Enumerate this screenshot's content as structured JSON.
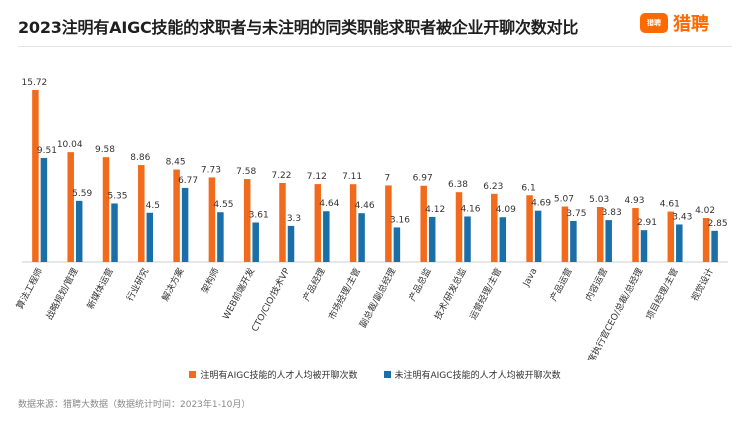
{
  "header": {
    "title": "2023注明有AIGC技能的求职者与未注明的同类职能求职者被企业开聊次数对比",
    "logo_badge": "猎聘",
    "logo_text": "猎聘"
  },
  "colors": {
    "orange": "#f26a1b",
    "blue": "#1a6fa9",
    "logo": "#ff6a00"
  },
  "footer": {
    "source": "数据来源：猎聘大数据（数据统计时间：2023年1-10月）"
  },
  "chart_data": {
    "type": "bar",
    "categories": [
      "算法工程师",
      "战略规划/管理",
      "新媒体运营",
      "行业研究",
      "解决方案",
      "架构师",
      "WEB前端开发",
      "CTO/CIO/技术VP",
      "产品经理",
      "市场经理/主管",
      "副总裁/副总经理",
      "产品总监",
      "技术/研发总监",
      "运营经理/主管",
      "Java",
      "产品运营",
      "内容运营",
      "首席执行官CEO/总裁/总经理",
      "项目经理/主管",
      "视觉设计"
    ],
    "series": [
      {
        "name": "注明有AIGC技能的人才人均被开聊次数",
        "color": "#f26a1b",
        "values": [
          15.72,
          10.04,
          9.58,
          8.86,
          8.45,
          7.73,
          7.58,
          7.22,
          7.12,
          7.11,
          7,
          6.97,
          6.38,
          6.23,
          6.1,
          5.07,
          5.03,
          4.93,
          4.61,
          4.02
        ]
      },
      {
        "name": "未注明有AIGC技能的人才人均被开聊次数",
        "color": "#1a6fa9",
        "values": [
          9.51,
          5.59,
          5.35,
          4.5,
          6.77,
          4.55,
          3.61,
          3.3,
          4.64,
          4.46,
          3.16,
          4.12,
          4.16,
          4.09,
          4.69,
          3.75,
          3.83,
          2.91,
          3.43,
          2.85
        ]
      }
    ],
    "ylim": [
      0,
      16.5
    ],
    "grid": false,
    "legend": "bottom"
  }
}
